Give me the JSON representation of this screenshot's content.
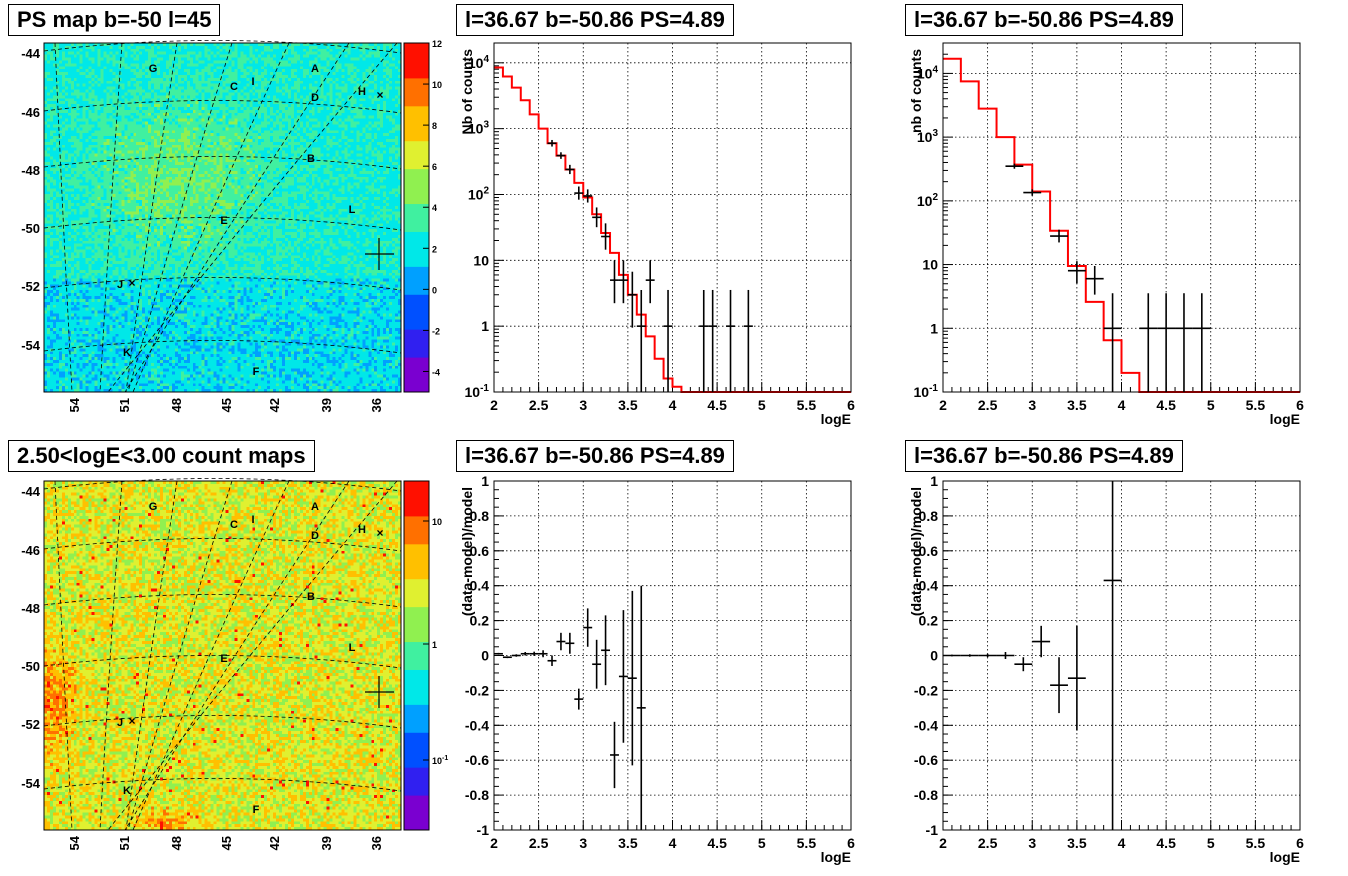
{
  "titles": {
    "map_top": "PS map b=-50 l=45",
    "map_bottom": "2.50<logE<3.00 count maps",
    "spectrum_a": "l=36.67 b=-50.86 PS=4.89",
    "spectrum_b": "l=36.67 b=-50.86 PS=4.89",
    "residual_a": "l=36.67 b=-50.86 PS=4.89",
    "residual_b": "l=36.67 b=-50.86 PS=4.89"
  },
  "maps": {
    "lat_ticks": [
      "-44",
      "-46",
      "-48",
      "-50",
      "-52",
      "-54"
    ],
    "lon_ticks": [
      "54",
      "51",
      "48",
      "45",
      "42",
      "39",
      "36"
    ],
    "source_labels": [
      "A",
      "B",
      "C",
      "D",
      "E",
      "F",
      "G",
      "H",
      "I",
      "J",
      "K",
      "L"
    ],
    "colorbar_top_ticks": [
      "12",
      "10",
      "8",
      "6",
      "4",
      "2",
      "0",
      "-2",
      "-4"
    ],
    "colorbar_bottom_ticks": [
      "10",
      "1",
      "10",
      "-1"
    ],
    "palette": [
      "#7a00d0",
      "#3020f0",
      "#0050ff",
      "#00a0ff",
      "#00e8e8",
      "#40f0a0",
      "#90f050",
      "#e0f030",
      "#ffc000",
      "#ff7000",
      "#ff1000"
    ]
  },
  "chart_data": [
    {
      "id": "spectrum_a",
      "type": "line",
      "title": "l=36.67 b=-50.86 PS=4.89",
      "xlabel": "logE",
      "ylabel": "Nb of counts",
      "xlim": [
        2,
        6
      ],
      "ylim": [
        0.1,
        20000
      ],
      "yscale": "log",
      "grid": true,
      "x_ticks": [
        "2",
        "2.5",
        "3",
        "3.5",
        "4",
        "4.5",
        "5",
        "5.5",
        "6"
      ],
      "y_ticks": [
        "10^{-1}",
        "1",
        "10",
        "10^{2}",
        "10^{3}",
        "10^{4}"
      ],
      "data_points": [
        {
          "x": 2.65,
          "y": 600,
          "ex": 0.05,
          "ey_lo": 0.05,
          "ey_hi": 0.05
        },
        {
          "x": 2.75,
          "y": 390,
          "ex": 0.05,
          "ey_lo": 0.05,
          "ey_hi": 0.05
        },
        {
          "x": 2.85,
          "y": 240,
          "ex": 0.05,
          "ey_lo": 0.07,
          "ey_hi": 0.07
        },
        {
          "x": 2.95,
          "y": 105,
          "ex": 0.05,
          "ey_lo": 0.1,
          "ey_hi": 0.1
        },
        {
          "x": 3.05,
          "y": 95,
          "ex": 0.05,
          "ey_lo": 0.1,
          "ey_hi": 0.1
        },
        {
          "x": 3.15,
          "y": 45,
          "ex": 0.05,
          "ey_lo": 0.15,
          "ey_hi": 0.15
        },
        {
          "x": 3.25,
          "y": 23,
          "ex": 0.05,
          "ey_lo": 0.2,
          "ey_hi": 0.2
        },
        {
          "x": 3.35,
          "y": 5,
          "ex": 0.05,
          "ey_lo": 0.35,
          "ey_hi": 0.3
        },
        {
          "x": 3.45,
          "y": 5,
          "ex": 0.05,
          "ey_lo": 0.35,
          "ey_hi": 0.3
        },
        {
          "x": 3.55,
          "y": 3,
          "ex": 0.05,
          "ey_lo": 0.5,
          "ey_hi": 0.35
        },
        {
          "x": 3.65,
          "y": 1,
          "ex": 0.05,
          "ey_lo": 1.0,
          "ey_hi": 0.55
        },
        {
          "x": 3.75,
          "y": 5,
          "ex": 0.05,
          "ey_lo": 0.35,
          "ey_hi": 0.3
        },
        {
          "x": 3.95,
          "y": 1,
          "ex": 0.05,
          "ey_lo": 1.0,
          "ey_hi": 0.55
        },
        {
          "x": 4.35,
          "y": 1,
          "ex": 0.05,
          "ey_lo": 1.0,
          "ey_hi": 0.55
        },
        {
          "x": 4.45,
          "y": 1,
          "ex": 0.05,
          "ey_lo": 1.0,
          "ey_hi": 0.55
        },
        {
          "x": 4.65,
          "y": 1,
          "ex": 0.05,
          "ey_lo": 1.0,
          "ey_hi": 0.55
        },
        {
          "x": 4.85,
          "y": 1,
          "ex": 0.05,
          "ey_lo": 1.0,
          "ey_hi": 0.55
        }
      ],
      "model_edges": [
        2.0,
        2.1,
        2.2,
        2.3,
        2.4,
        2.5,
        2.6,
        2.7,
        2.8,
        2.9,
        3.0,
        3.1,
        3.2,
        3.3,
        3.4,
        3.5,
        3.6,
        3.7,
        3.8,
        3.9,
        4.0,
        4.1,
        4.2,
        6.0
      ],
      "model_values": [
        8500,
        6200,
        4200,
        2700,
        1650,
        1000,
        600,
        390,
        240,
        150,
        90,
        50,
        26,
        13,
        6,
        3,
        1.5,
        0.7,
        0.32,
        0.16,
        0.12,
        0.1,
        0.1
      ],
      "model_color": "#ff0000"
    },
    {
      "id": "spectrum_b",
      "type": "line",
      "title": "l=36.67 b=-50.86 PS=4.89",
      "xlabel": "logE",
      "ylabel": "nb of counts",
      "xlim": [
        2,
        6
      ],
      "ylim": [
        0.1,
        30000
      ],
      "yscale": "log",
      "grid": true,
      "x_ticks": [
        "2",
        "2.5",
        "3",
        "3.5",
        "4",
        "4.5",
        "5",
        "5.5",
        "6"
      ],
      "y_ticks": [
        "10^{-1}",
        "1",
        "10",
        "10^{2}",
        "10^{3}",
        "10^{4}"
      ],
      "data_points": [
        {
          "x": 2.8,
          "y": 350,
          "ex": 0.1,
          "ey_lo": 0.04,
          "ey_hi": 0.04
        },
        {
          "x": 3.0,
          "y": 135,
          "ex": 0.1,
          "ey_lo": 0.05,
          "ey_hi": 0.05
        },
        {
          "x": 3.3,
          "y": 28,
          "ex": 0.1,
          "ey_lo": 0.1,
          "ey_hi": 0.1
        },
        {
          "x": 3.5,
          "y": 8,
          "ex": 0.1,
          "ey_lo": 0.2,
          "ey_hi": 0.15
        },
        {
          "x": 3.7,
          "y": 6,
          "ex": 0.1,
          "ey_lo": 0.25,
          "ey_hi": 0.2
        },
        {
          "x": 3.9,
          "y": 1,
          "ex": 0.1,
          "ey_lo": 1.0,
          "ey_hi": 0.55
        },
        {
          "x": 4.3,
          "y": 1,
          "ex": 0.1,
          "ey_lo": 1.0,
          "ey_hi": 0.55
        },
        {
          "x": 4.5,
          "y": 1,
          "ex": 0.1,
          "ey_lo": 1.0,
          "ey_hi": 0.55
        },
        {
          "x": 4.7,
          "y": 1,
          "ex": 0.1,
          "ey_lo": 1.0,
          "ey_hi": 0.55
        },
        {
          "x": 4.9,
          "y": 1,
          "ex": 0.1,
          "ey_lo": 1.0,
          "ey_hi": 0.55
        }
      ],
      "model_edges": [
        2.0,
        2.2,
        2.4,
        2.6,
        2.8,
        3.0,
        3.2,
        3.4,
        3.6,
        3.8,
        4.0,
        4.2,
        6.0
      ],
      "model_values": [
        17000,
        7500,
        2800,
        1000,
        370,
        140,
        34,
        9.5,
        2.6,
        0.65,
        0.2,
        0.1
      ],
      "model_color": "#ff0000"
    },
    {
      "id": "residual_a",
      "type": "scatter",
      "title": "l=36.67 b=-50.86 PS=4.89",
      "xlabel": "logE",
      "ylabel": "(data-model)/model",
      "xlim": [
        2,
        6
      ],
      "ylim": [
        -1,
        1
      ],
      "grid": true,
      "x_ticks": [
        "2",
        "2.5",
        "3",
        "3.5",
        "4",
        "4.5",
        "5",
        "5.5",
        "6"
      ],
      "y_ticks": [
        "-1",
        "-0.8",
        "-0.6",
        "-0.4",
        "-0.2",
        "0",
        "0.2",
        "0.4",
        "0.6",
        "0.8",
        "1"
      ],
      "points": [
        {
          "x": 2.05,
          "y": 0.01,
          "ex": 0.05,
          "ey": 0.005
        },
        {
          "x": 2.15,
          "y": -0.01,
          "ex": 0.05,
          "ey": 0.005
        },
        {
          "x": 2.25,
          "y": 0.0,
          "ex": 0.05,
          "ey": 0.007
        },
        {
          "x": 2.35,
          "y": 0.01,
          "ex": 0.05,
          "ey": 0.01
        },
        {
          "x": 2.45,
          "y": 0.01,
          "ex": 0.05,
          "ey": 0.012
        },
        {
          "x": 2.55,
          "y": 0.01,
          "ex": 0.05,
          "ey": 0.02
        },
        {
          "x": 2.65,
          "y": -0.03,
          "ex": 0.05,
          "ey": 0.03
        },
        {
          "x": 2.75,
          "y": 0.08,
          "ex": 0.05,
          "ey": 0.05
        },
        {
          "x": 2.85,
          "y": 0.07,
          "ex": 0.05,
          "ey": 0.06
        },
        {
          "x": 2.95,
          "y": -0.25,
          "ex": 0.05,
          "ey": 0.06
        },
        {
          "x": 3.05,
          "y": 0.16,
          "ex": 0.05,
          "ey": 0.11
        },
        {
          "x": 3.15,
          "y": -0.05,
          "ex": 0.05,
          "ey": 0.14
        },
        {
          "x": 3.25,
          "y": 0.03,
          "ex": 0.05,
          "ey": 0.2
        },
        {
          "x": 3.35,
          "y": -0.57,
          "ex": 0.05,
          "ey": 0.19
        },
        {
          "x": 3.45,
          "y": -0.12,
          "ex": 0.05,
          "ey": 0.38
        },
        {
          "x": 3.55,
          "y": -0.13,
          "ex": 0.05,
          "ey": 0.5
        },
        {
          "x": 3.65,
          "y": -0.3,
          "ex": 0.05,
          "ey": 0.7
        }
      ]
    },
    {
      "id": "residual_b",
      "type": "scatter",
      "title": "l=36.67 b=-50.86 PS=4.89",
      "xlabel": "logE",
      "ylabel": "(data-model)/model",
      "xlim": [
        2,
        6
      ],
      "ylim": [
        -1,
        1
      ],
      "grid": true,
      "x_ticks": [
        "2",
        "2.5",
        "3",
        "3.5",
        "4",
        "4.5",
        "5",
        "5.5",
        "6"
      ],
      "y_ticks": [
        "-1",
        "-0.8",
        "-0.6",
        "-0.4",
        "-0.2",
        "0",
        "0.2",
        "0.4",
        "0.6",
        "0.8",
        "1"
      ],
      "points": [
        {
          "x": 2.1,
          "y": 0.0,
          "ex": 0.1,
          "ey": 0.005
        },
        {
          "x": 2.3,
          "y": 0.0,
          "ex": 0.1,
          "ey": 0.007
        },
        {
          "x": 2.5,
          "y": 0.0,
          "ex": 0.1,
          "ey": 0.01
        },
        {
          "x": 2.7,
          "y": 0.0,
          "ex": 0.1,
          "ey": 0.02
        },
        {
          "x": 2.9,
          "y": -0.05,
          "ex": 0.1,
          "ey": 0.04
        },
        {
          "x": 3.1,
          "y": 0.08,
          "ex": 0.1,
          "ey": 0.09
        },
        {
          "x": 3.3,
          "y": -0.17,
          "ex": 0.1,
          "ey": 0.16
        },
        {
          "x": 3.5,
          "y": -0.13,
          "ex": 0.1,
          "ey": 0.3
        },
        {
          "x": 3.9,
          "y": 0.43,
          "ex": 0.1,
          "ey": 1.5
        }
      ]
    }
  ]
}
